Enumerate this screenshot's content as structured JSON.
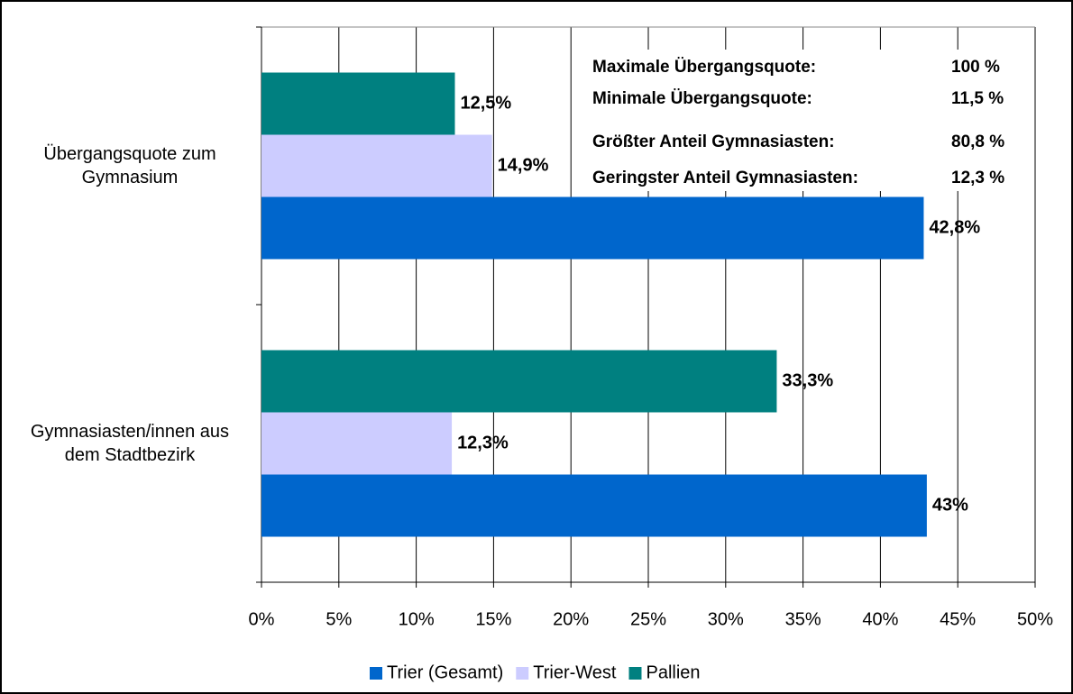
{
  "chart_data": {
    "type": "bar",
    "orientation": "horizontal",
    "categories": [
      "Übergangsquote zum Gymnasium",
      "Gymnasiasten/innen aus dem Stadtbezirk"
    ],
    "series": [
      {
        "name": "Trier (Gesamt)",
        "color": "#0066cc",
        "values": [
          42.8,
          43
        ],
        "value_labels": [
          "42,8%",
          "43%"
        ]
      },
      {
        "name": "Trier-West",
        "color": "#ccccff",
        "values": [
          14.9,
          12.3
        ],
        "value_labels": [
          "14,9%",
          "12,3%"
        ]
      },
      {
        "name": "Pallien",
        "color": "#008080",
        "values": [
          12.5,
          33.3
        ],
        "value_labels": [
          "12,5%",
          "33,3%"
        ]
      }
    ],
    "xlim": [
      0,
      50
    ],
    "xticks": [
      {
        "value": 0,
        "label": "0%"
      },
      {
        "value": 5,
        "label": "5%"
      },
      {
        "value": 10,
        "label": "10%"
      },
      {
        "value": 15,
        "label": "15%"
      },
      {
        "value": 20,
        "label": "20%"
      },
      {
        "value": 25,
        "label": "25%"
      },
      {
        "value": 30,
        "label": "30%"
      },
      {
        "value": 35,
        "label": "35%"
      },
      {
        "value": 40,
        "label": "40%"
      },
      {
        "value": 45,
        "label": "45%"
      },
      {
        "value": 50,
        "label": "50%"
      }
    ],
    "grid": true,
    "legend": "bottom",
    "annotations": [
      {
        "label": "Maximale Übergangsquote:",
        "value": "100 %"
      },
      {
        "label": "Minimale Übergangsquote:",
        "value": "11,5 %"
      },
      {
        "label": "Größter Anteil Gymnasiasten:",
        "value": "80,8 %"
      },
      {
        "label": "Geringster Anteil Gymnasiasten:",
        "value": "12,3 %"
      }
    ]
  }
}
